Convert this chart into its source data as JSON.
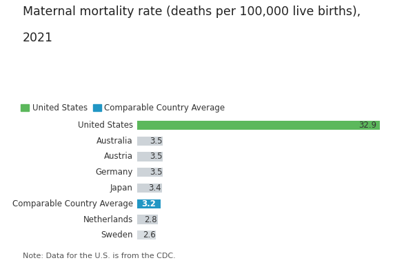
{
  "title_line1": "Maternal mortality rate (deaths per 100,000 live births),",
  "title_line2": "2021",
  "categories": [
    "United States",
    "Australia",
    "Austria",
    "Germany",
    "Japan",
    "Comparable Country Average",
    "Netherlands",
    "Sweden"
  ],
  "values": [
    32.9,
    3.5,
    3.5,
    3.5,
    3.4,
    3.2,
    2.8,
    2.6
  ],
  "bar_colors": [
    "#5cb85c",
    "#cdd3d8",
    "#cdd3d8",
    "#cdd3d8",
    "#cdd3d8",
    "#2196c4",
    "#cdd3d8",
    "#d8dde1"
  ],
  "label_colors": [
    "#333333",
    "#333333",
    "#333333",
    "#333333",
    "#333333",
    "#ffffff",
    "#333333",
    "#333333"
  ],
  "us_color": "#5cb85c",
  "avg_color": "#2196c4",
  "note": "Note: Data for the U.S. is from the CDC.",
  "legend_us": "United States",
  "legend_avg": "Comparable Country Average",
  "title_fontsize": 12.5,
  "label_fontsize": 8.5,
  "cat_fontsize": 8.5,
  "note_fontsize": 8,
  "background_color": "#ffffff",
  "xlim": [
    0,
    36
  ],
  "bar_height": 0.58
}
